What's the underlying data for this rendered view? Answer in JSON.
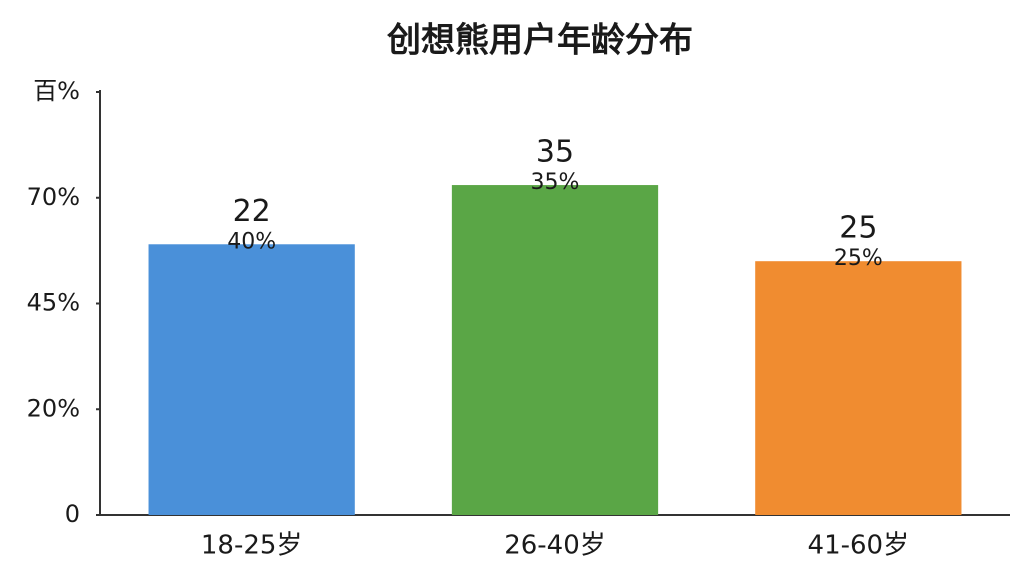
{
  "chart_data": {
    "type": "bar",
    "title": "创想熊用户年龄分布",
    "categories": [
      "18-25岁",
      "26-40岁",
      "41-60岁"
    ],
    "values": [
      64,
      78,
      60
    ],
    "colors": [
      "#4a90d9",
      "#5aa646",
      "#f08c30"
    ],
    "annotations": [
      [
        "22",
        "40%"
      ],
      [
        "35",
        "35%"
      ],
      [
        "25",
        "25%"
      ]
    ],
    "ylim": [
      0,
      100
    ],
    "yticks": [
      0,
      {
        "value": 25,
        "label": "20%"
      },
      {
        "value": 50,
        "label": "45%"
      },
      {
        "value": 75,
        "label": "70%"
      },
      {
        "value": 100,
        "label": "百%"
      }
    ],
    "grid": false
  }
}
